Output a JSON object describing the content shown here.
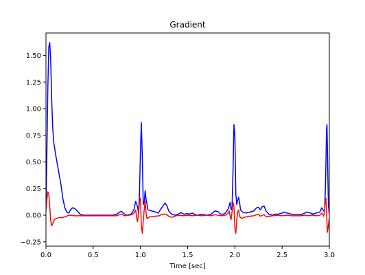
{
  "chart_data": {
    "type": "line",
    "title": "Gradient",
    "xlabel": "Time [sec]",
    "ylabel": "",
    "xlim": [
      0.0,
      3.0
    ],
    "ylim": [
      -0.29,
      1.71
    ],
    "grid": false,
    "x_ticks": [
      0.0,
      0.5,
      1.0,
      1.5,
      2.0,
      2.5,
      3.0
    ],
    "x_tick_labels": [
      "0.0",
      "0.5",
      "1.0",
      "1.5",
      "2.0",
      "2.5",
      "3.0"
    ],
    "y_ticks": [
      -0.25,
      0.0,
      0.25,
      0.5,
      0.75,
      1.0,
      1.25,
      1.5
    ],
    "y_tick_labels": [
      "−0.25",
      "0.00",
      "0.25",
      "0.50",
      "0.75",
      "1.00",
      "1.25",
      "1.50"
    ],
    "series": [
      {
        "color": "#0000ff",
        "points": [
          [
            0.0,
            0.1
          ],
          [
            0.01,
            0.6
          ],
          [
            0.02,
            1.2
          ],
          [
            0.03,
            1.58
          ],
          [
            0.04,
            1.62
          ],
          [
            0.05,
            1.45
          ],
          [
            0.06,
            1.1
          ],
          [
            0.07,
            0.85
          ],
          [
            0.08,
            0.7
          ],
          [
            0.1,
            0.58
          ],
          [
            0.12,
            0.48
          ],
          [
            0.14,
            0.38
          ],
          [
            0.16,
            0.28
          ],
          [
            0.18,
            0.15
          ],
          [
            0.2,
            0.07
          ],
          [
            0.22,
            0.03
          ],
          [
            0.24,
            0.02
          ],
          [
            0.26,
            0.05
          ],
          [
            0.28,
            0.07
          ],
          [
            0.3,
            0.065
          ],
          [
            0.32,
            0.05
          ],
          [
            0.34,
            0.03
          ],
          [
            0.36,
            0.01
          ],
          [
            0.4,
            0.0
          ],
          [
            0.5,
            0.0
          ],
          [
            0.6,
            0.0
          ],
          [
            0.7,
            0.0
          ],
          [
            0.75,
            0.01
          ],
          [
            0.78,
            0.03
          ],
          [
            0.8,
            0.035
          ],
          [
            0.82,
            0.02
          ],
          [
            0.85,
            0.0
          ],
          [
            0.9,
            0.01
          ],
          [
            0.93,
            0.05
          ],
          [
            0.95,
            0.13
          ],
          [
            0.97,
            0.08
          ],
          [
            0.98,
            0.02
          ],
          [
            0.99,
            0.2
          ],
          [
            1.0,
            0.6
          ],
          [
            1.01,
            0.87
          ],
          [
            1.02,
            0.55
          ],
          [
            1.03,
            0.1
          ],
          [
            1.04,
            0.12
          ],
          [
            1.05,
            0.23
          ],
          [
            1.06,
            0.15
          ],
          [
            1.08,
            0.05
          ],
          [
            1.12,
            0.04
          ],
          [
            1.16,
            0.03
          ],
          [
            1.19,
            0.02
          ],
          [
            1.21,
            0.05
          ],
          [
            1.24,
            0.09
          ],
          [
            1.26,
            0.115
          ],
          [
            1.28,
            0.09
          ],
          [
            1.3,
            0.04
          ],
          [
            1.33,
            0.01
          ],
          [
            1.37,
            0.0
          ],
          [
            1.4,
            0.01
          ],
          [
            1.43,
            0.025
          ],
          [
            1.46,
            0.01
          ],
          [
            1.5,
            0.015
          ],
          [
            1.52,
            0.01
          ],
          [
            1.55,
            0.02
          ],
          [
            1.57,
            0.01
          ],
          [
            1.6,
            0.0
          ],
          [
            1.65,
            0.01
          ],
          [
            1.7,
            0.0
          ],
          [
            1.75,
            0.01
          ],
          [
            1.79,
            0.04
          ],
          [
            1.82,
            0.035
          ],
          [
            1.85,
            0.01
          ],
          [
            1.88,
            0.01
          ],
          [
            1.9,
            0.02
          ],
          [
            1.93,
            0.06
          ],
          [
            1.95,
            0.12
          ],
          [
            1.96,
            0.05
          ],
          [
            1.97,
            0.08
          ],
          [
            1.98,
            0.4
          ],
          [
            1.99,
            0.85
          ],
          [
            2.0,
            0.75
          ],
          [
            2.01,
            0.2
          ],
          [
            2.02,
            0.1
          ],
          [
            2.03,
            0.14
          ],
          [
            2.04,
            0.17
          ],
          [
            2.05,
            0.12
          ],
          [
            2.06,
            0.05
          ],
          [
            2.08,
            0.03
          ],
          [
            2.12,
            0.02
          ],
          [
            2.16,
            0.03
          ],
          [
            2.2,
            0.04
          ],
          [
            2.23,
            0.07
          ],
          [
            2.25,
            0.075
          ],
          [
            2.27,
            0.05
          ],
          [
            2.29,
            0.08
          ],
          [
            2.31,
            0.085
          ],
          [
            2.33,
            0.04
          ],
          [
            2.36,
            0.01
          ],
          [
            2.4,
            0.0
          ],
          [
            2.42,
            0.01
          ],
          [
            2.46,
            0.01
          ],
          [
            2.5,
            0.02
          ],
          [
            2.52,
            0.03
          ],
          [
            2.55,
            0.02
          ],
          [
            2.6,
            0.01
          ],
          [
            2.65,
            0.005
          ],
          [
            2.7,
            0.005
          ],
          [
            2.74,
            0.02
          ],
          [
            2.76,
            0.03
          ],
          [
            2.78,
            0.025
          ],
          [
            2.8,
            0.02
          ],
          [
            2.83,
            0.01
          ],
          [
            2.86,
            0.02
          ],
          [
            2.9,
            0.03
          ],
          [
            2.92,
            0.07
          ],
          [
            2.94,
            0.04
          ],
          [
            2.95,
            0.05
          ],
          [
            2.96,
            0.3
          ],
          [
            2.97,
            0.8
          ],
          [
            2.975,
            0.85
          ],
          [
            2.98,
            0.6
          ],
          [
            2.99,
            0.1
          ],
          [
            3.0,
            0.0
          ]
        ]
      },
      {
        "color": "#ff0000",
        "points": [
          [
            0.0,
            0.05
          ],
          [
            0.01,
            0.15
          ],
          [
            0.02,
            0.22
          ],
          [
            0.03,
            0.2
          ],
          [
            0.04,
            0.08
          ],
          [
            0.05,
            -0.05
          ],
          [
            0.06,
            -0.1
          ],
          [
            0.07,
            -0.08
          ],
          [
            0.09,
            -0.04
          ],
          [
            0.11,
            -0.03
          ],
          [
            0.13,
            -0.025
          ],
          [
            0.15,
            -0.02
          ],
          [
            0.17,
            -0.025
          ],
          [
            0.2,
            -0.015
          ],
          [
            0.23,
            -0.005
          ],
          [
            0.25,
            0.0
          ],
          [
            0.3,
            -0.005
          ],
          [
            0.4,
            -0.005
          ],
          [
            0.5,
            -0.005
          ],
          [
            0.6,
            -0.005
          ],
          [
            0.7,
            -0.005
          ],
          [
            0.75,
            -0.005
          ],
          [
            0.78,
            0.005
          ],
          [
            0.8,
            0.01
          ],
          [
            0.83,
            -0.005
          ],
          [
            0.88,
            0.0
          ],
          [
            0.91,
            0.005
          ],
          [
            0.94,
            0.03
          ],
          [
            0.95,
            0.05
          ],
          [
            0.96,
            -0.02
          ],
          [
            0.97,
            -0.06
          ],
          [
            0.98,
            0.02
          ],
          [
            0.99,
            0.12
          ],
          [
            1.0,
            0.16
          ],
          [
            1.01,
            -0.1
          ],
          [
            1.02,
            -0.17
          ],
          [
            1.03,
            -0.05
          ],
          [
            1.04,
            0.05
          ],
          [
            1.05,
            0.13
          ],
          [
            1.06,
            0.02
          ],
          [
            1.07,
            -0.03
          ],
          [
            1.08,
            -0.025
          ],
          [
            1.1,
            -0.015
          ],
          [
            1.15,
            -0.01
          ],
          [
            1.2,
            -0.005
          ],
          [
            1.22,
            0.005
          ],
          [
            1.25,
            0.01
          ],
          [
            1.27,
            0.01
          ],
          [
            1.3,
            -0.01
          ],
          [
            1.33,
            -0.02
          ],
          [
            1.36,
            -0.01
          ],
          [
            1.4,
            0.0
          ],
          [
            1.45,
            -0.005
          ],
          [
            1.5,
            0.0
          ],
          [
            1.55,
            -0.005
          ],
          [
            1.6,
            0.0
          ],
          [
            1.65,
            -0.005
          ],
          [
            1.7,
            0.0
          ],
          [
            1.75,
            -0.005
          ],
          [
            1.79,
            0.005
          ],
          [
            1.82,
            0.0
          ],
          [
            1.86,
            -0.005
          ],
          [
            1.9,
            0.0
          ],
          [
            1.93,
            0.02
          ],
          [
            1.94,
            0.04
          ],
          [
            1.95,
            -0.01
          ],
          [
            1.96,
            -0.04
          ],
          [
            1.97,
            0.03
          ],
          [
            1.98,
            0.12
          ],
          [
            1.99,
            0.08
          ],
          [
            2.0,
            -0.12
          ],
          [
            2.01,
            -0.17
          ],
          [
            2.02,
            -0.04
          ],
          [
            2.03,
            0.03
          ],
          [
            2.04,
            0.05
          ],
          [
            2.05,
            -0.01
          ],
          [
            2.07,
            -0.03
          ],
          [
            2.1,
            -0.02
          ],
          [
            2.15,
            -0.01
          ],
          [
            2.2,
            -0.005
          ],
          [
            2.23,
            0.005
          ],
          [
            2.25,
            0.01
          ],
          [
            2.27,
            -0.01
          ],
          [
            2.29,
            0.0
          ],
          [
            2.31,
            0.005
          ],
          [
            2.33,
            -0.015
          ],
          [
            2.36,
            -0.01
          ],
          [
            2.4,
            -0.005
          ],
          [
            2.45,
            0.0
          ],
          [
            2.5,
            -0.005
          ],
          [
            2.55,
            0.0
          ],
          [
            2.6,
            -0.005
          ],
          [
            2.7,
            -0.005
          ],
          [
            2.75,
            0.0
          ],
          [
            2.78,
            -0.005
          ],
          [
            2.82,
            0.0
          ],
          [
            2.86,
            -0.005
          ],
          [
            2.9,
            0.0
          ],
          [
            2.92,
            0.02
          ],
          [
            2.93,
            0.01
          ],
          [
            2.94,
            -0.01
          ],
          [
            2.95,
            0.05
          ],
          [
            2.96,
            0.15
          ],
          [
            2.965,
            0.16
          ],
          [
            2.97,
            0.05
          ],
          [
            2.98,
            -0.16
          ],
          [
            2.99,
            -0.1
          ],
          [
            3.0,
            -0.02
          ]
        ]
      }
    ]
  }
}
